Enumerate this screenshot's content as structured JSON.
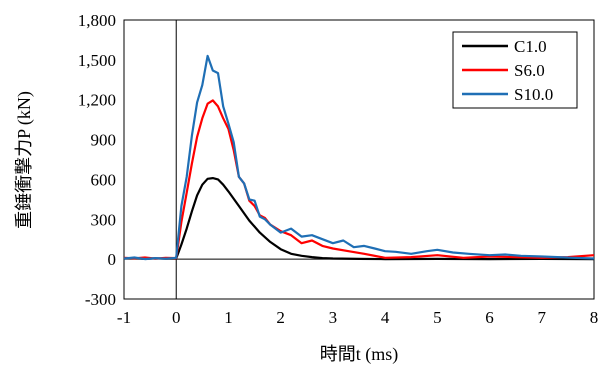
{
  "chart_data": {
    "type": "line",
    "xlabel": "時間t (ms)",
    "ylabel": "重錘衝撃力P (kN)",
    "xlim": [
      -1,
      8
    ],
    "ylim": [
      -300,
      1800
    ],
    "x_ticks": [
      "-1",
      "0",
      "1",
      "2",
      "3",
      "4",
      "5",
      "6",
      "7",
      "8"
    ],
    "y_ticks": [
      "-300",
      "0",
      "300",
      "600",
      "900",
      "1,200",
      "1,500",
      "1,800"
    ],
    "grid": false,
    "legend_position": "top-right",
    "series": [
      {
        "name": "C1.0",
        "color": "#000000",
        "points": [
          [
            -1,
            5
          ],
          [
            -0.8,
            8
          ],
          [
            -0.6,
            2
          ],
          [
            -0.4,
            6
          ],
          [
            -0.2,
            3
          ],
          [
            0,
            5
          ],
          [
            0.1,
            110
          ],
          [
            0.2,
            230
          ],
          [
            0.3,
            360
          ],
          [
            0.4,
            480
          ],
          [
            0.5,
            560
          ],
          [
            0.6,
            605
          ],
          [
            0.7,
            610
          ],
          [
            0.8,
            600
          ],
          [
            0.9,
            560
          ],
          [
            1.0,
            510
          ],
          [
            1.2,
            400
          ],
          [
            1.4,
            290
          ],
          [
            1.6,
            200
          ],
          [
            1.8,
            130
          ],
          [
            2.0,
            75
          ],
          [
            2.2,
            40
          ],
          [
            2.4,
            25
          ],
          [
            2.6,
            15
          ],
          [
            2.8,
            8
          ],
          [
            3.0,
            5
          ],
          [
            3.5,
            2
          ],
          [
            4.0,
            0
          ],
          [
            5.0,
            2
          ],
          [
            6.0,
            0
          ],
          [
            7.0,
            2
          ],
          [
            8.0,
            0
          ]
        ]
      },
      {
        "name": "S6.0",
        "color": "#ff0000",
        "points": [
          [
            -1,
            10
          ],
          [
            -0.8,
            6
          ],
          [
            -0.6,
            12
          ],
          [
            -0.4,
            4
          ],
          [
            -0.2,
            10
          ],
          [
            0,
            8
          ],
          [
            0.1,
            280
          ],
          [
            0.2,
            500
          ],
          [
            0.3,
            720
          ],
          [
            0.4,
            920
          ],
          [
            0.5,
            1060
          ],
          [
            0.6,
            1170
          ],
          [
            0.7,
            1195
          ],
          [
            0.8,
            1150
          ],
          [
            0.9,
            1060
          ],
          [
            1.0,
            980
          ],
          [
            1.1,
            820
          ],
          [
            1.2,
            620
          ],
          [
            1.3,
            570
          ],
          [
            1.4,
            440
          ],
          [
            1.5,
            400
          ],
          [
            1.6,
            330
          ],
          [
            1.7,
            310
          ],
          [
            1.8,
            260
          ],
          [
            2.0,
            210
          ],
          [
            2.2,
            180
          ],
          [
            2.4,
            120
          ],
          [
            2.6,
            140
          ],
          [
            2.8,
            100
          ],
          [
            3.0,
            80
          ],
          [
            3.3,
            60
          ],
          [
            3.6,
            40
          ],
          [
            4.0,
            10
          ],
          [
            4.5,
            15
          ],
          [
            5.0,
            30
          ],
          [
            5.5,
            10
          ],
          [
            6.0,
            20
          ],
          [
            6.5,
            15
          ],
          [
            7.0,
            10
          ],
          [
            7.5,
            15
          ],
          [
            8.0,
            30
          ]
        ]
      },
      {
        "name": "S10.0",
        "color": "#1f6fb5",
        "points": [
          [
            -1,
            5
          ],
          [
            -0.8,
            12
          ],
          [
            -0.6,
            0
          ],
          [
            -0.4,
            8
          ],
          [
            -0.2,
            3
          ],
          [
            0,
            10
          ],
          [
            0.1,
            400
          ],
          [
            0.2,
            620
          ],
          [
            0.3,
            930
          ],
          [
            0.4,
            1180
          ],
          [
            0.5,
            1310
          ],
          [
            0.6,
            1530
          ],
          [
            0.7,
            1420
          ],
          [
            0.8,
            1400
          ],
          [
            0.9,
            1150
          ],
          [
            1.0,
            1020
          ],
          [
            1.1,
            880
          ],
          [
            1.2,
            620
          ],
          [
            1.3,
            570
          ],
          [
            1.4,
            450
          ],
          [
            1.5,
            440
          ],
          [
            1.6,
            320
          ],
          [
            1.7,
            300
          ],
          [
            1.8,
            260
          ],
          [
            2.0,
            200
          ],
          [
            2.2,
            230
          ],
          [
            2.4,
            170
          ],
          [
            2.6,
            180
          ],
          [
            2.8,
            150
          ],
          [
            3.0,
            120
          ],
          [
            3.2,
            140
          ],
          [
            3.4,
            90
          ],
          [
            3.6,
            100
          ],
          [
            3.8,
            80
          ],
          [
            4.0,
            60
          ],
          [
            4.2,
            55
          ],
          [
            4.5,
            40
          ],
          [
            4.8,
            60
          ],
          [
            5.0,
            70
          ],
          [
            5.3,
            50
          ],
          [
            5.6,
            40
          ],
          [
            6.0,
            30
          ],
          [
            6.3,
            35
          ],
          [
            6.6,
            25
          ],
          [
            7.0,
            20
          ],
          [
            7.3,
            15
          ],
          [
            7.6,
            10
          ],
          [
            8.0,
            5
          ]
        ]
      }
    ]
  }
}
